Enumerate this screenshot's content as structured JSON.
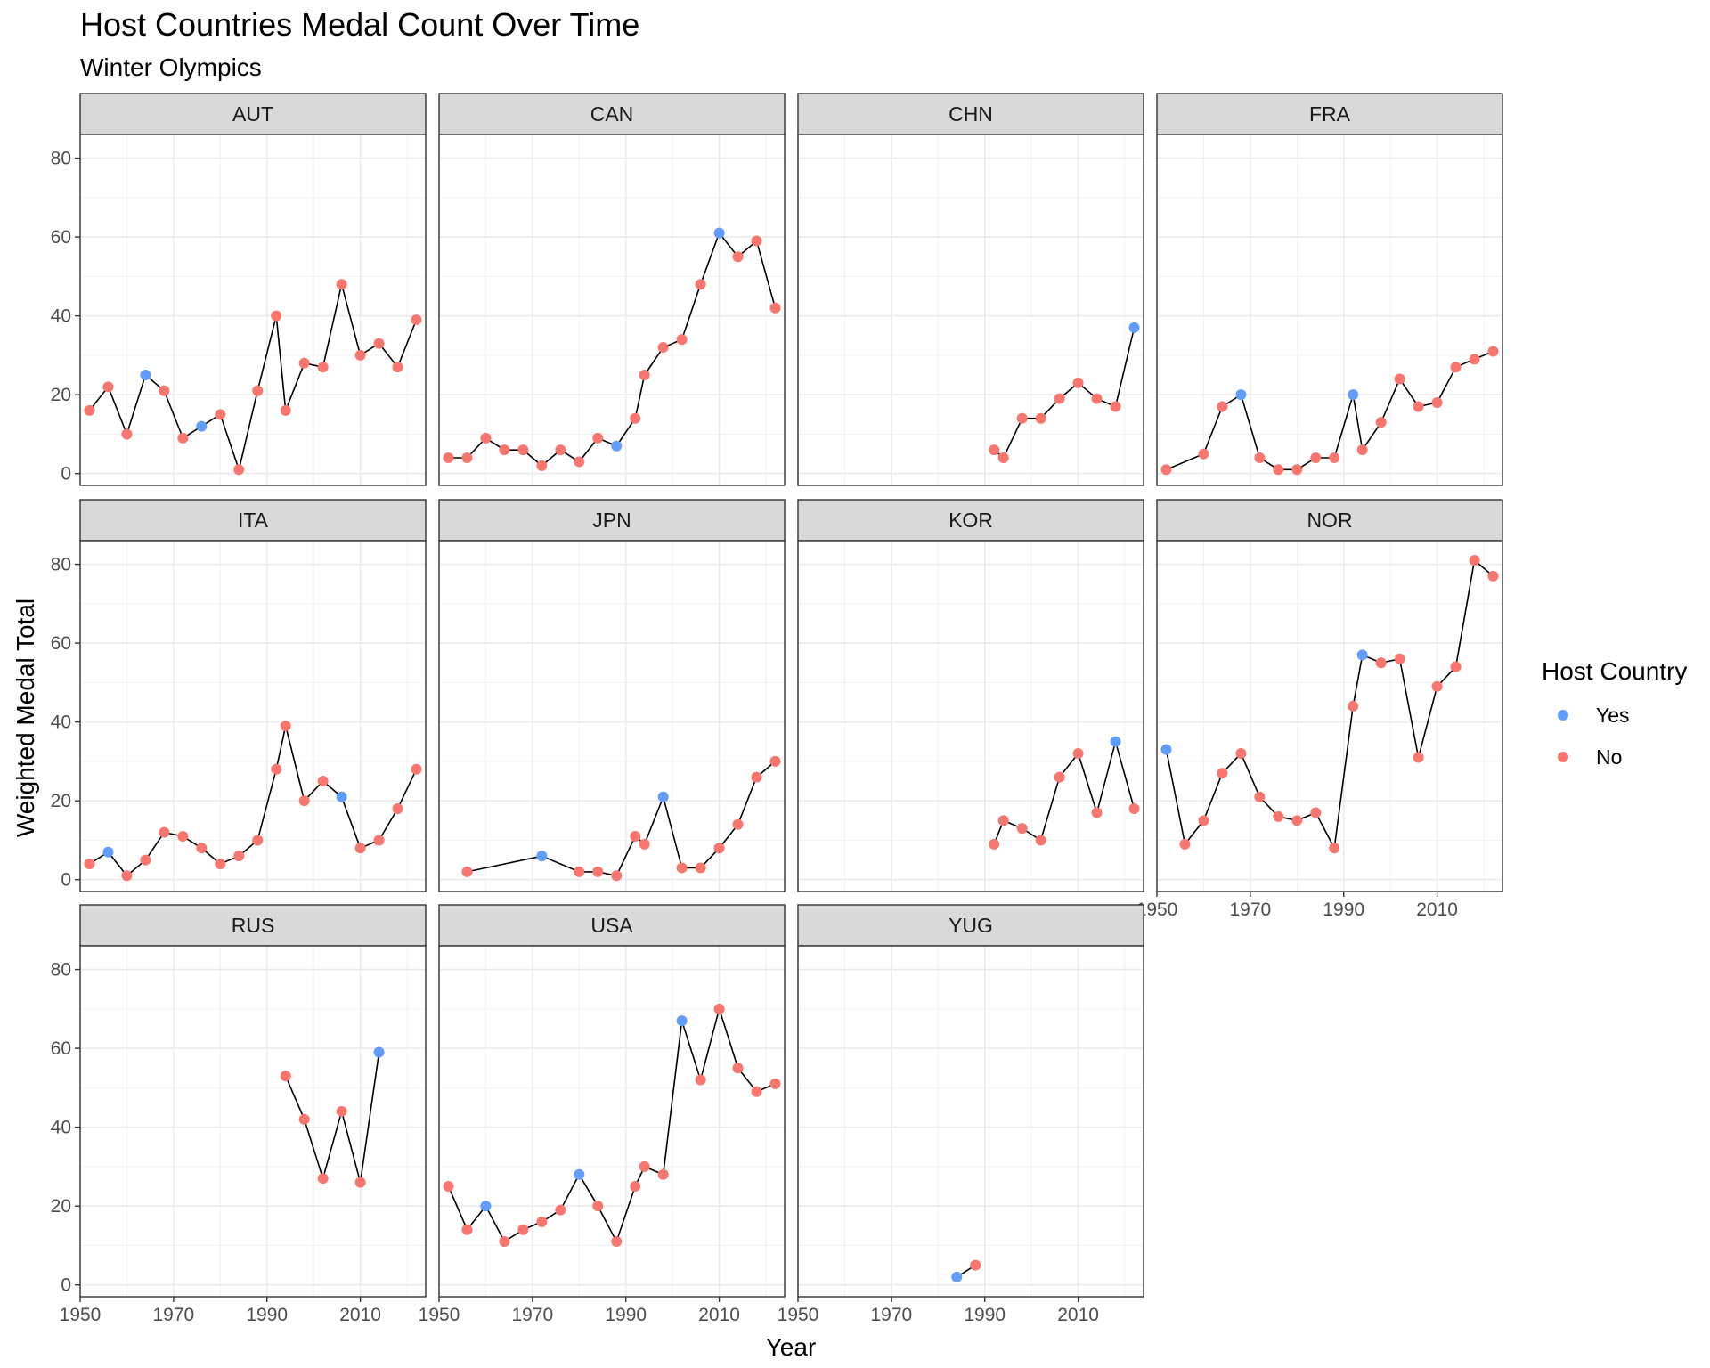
{
  "chart_data": {
    "type": "line",
    "title": "Host Countries Medal Count Over Time",
    "subtitle": "Winter Olympics",
    "xlabel": "Year",
    "ylabel": "Weighted Medal Total",
    "xlim": [
      1950,
      2024
    ],
    "ylim": [
      -3,
      86
    ],
    "x_ticks": [
      1950,
      1970,
      1990,
      2010
    ],
    "y_ticks": [
      0,
      20,
      40,
      60,
      80
    ],
    "grid": true,
    "legend": {
      "title": "Host Country",
      "position": "right",
      "entries": [
        {
          "key": "Yes",
          "label": "Yes",
          "color": "#619CFF"
        },
        {
          "key": "No",
          "label": "No",
          "color": "#F8766D"
        }
      ]
    },
    "line_color": "#000000",
    "panels": [
      {
        "name": "AUT",
        "x": [
          1952,
          1956,
          1960,
          1964,
          1968,
          1972,
          1976,
          1980,
          1984,
          1988,
          1992,
          1994,
          1998,
          2002,
          2006,
          2010,
          2014,
          2018,
          2022
        ],
        "values": [
          16,
          22,
          10,
          25,
          21,
          9,
          12,
          15,
          1,
          21,
          40,
          16,
          28,
          27,
          48,
          30,
          33,
          27,
          39
        ],
        "host": [
          "No",
          "No",
          "No",
          "Yes",
          "No",
          "No",
          "Yes",
          "No",
          "No",
          "No",
          "No",
          "No",
          "No",
          "No",
          "No",
          "No",
          "No",
          "No",
          "No"
        ]
      },
      {
        "name": "CAN",
        "x": [
          1952,
          1956,
          1960,
          1964,
          1968,
          1972,
          1976,
          1980,
          1984,
          1988,
          1992,
          1994,
          1998,
          2002,
          2006,
          2010,
          2014,
          2018,
          2022
        ],
        "values": [
          4,
          4,
          9,
          6,
          6,
          2,
          6,
          3,
          9,
          7,
          14,
          25,
          32,
          34,
          48,
          61,
          55,
          59,
          42
        ],
        "host": [
          "No",
          "No",
          "No",
          "No",
          "No",
          "No",
          "No",
          "No",
          "No",
          "Yes",
          "No",
          "No",
          "No",
          "No",
          "No",
          "Yes",
          "No",
          "No",
          "No"
        ]
      },
      {
        "name": "CHN",
        "x": [
          1992,
          1994,
          1998,
          2002,
          2006,
          2010,
          2014,
          2018,
          2022
        ],
        "values": [
          6,
          4,
          14,
          14,
          19,
          23,
          19,
          17,
          37
        ],
        "host": [
          "No",
          "No",
          "No",
          "No",
          "No",
          "No",
          "No",
          "No",
          "Yes"
        ]
      },
      {
        "name": "FRA",
        "x": [
          1952,
          1960,
          1964,
          1968,
          1972,
          1976,
          1980,
          1984,
          1988,
          1992,
          1994,
          1998,
          2002,
          2006,
          2010,
          2014,
          2018,
          2022
        ],
        "values": [
          1,
          5,
          17,
          20,
          4,
          1,
          1,
          4,
          4,
          20,
          6,
          13,
          24,
          17,
          18,
          27,
          29,
          31
        ],
        "host": [
          "No",
          "No",
          "No",
          "Yes",
          "No",
          "No",
          "No",
          "No",
          "No",
          "Yes",
          "No",
          "No",
          "No",
          "No",
          "No",
          "No",
          "No",
          "No"
        ]
      },
      {
        "name": "ITA",
        "x": [
          1952,
          1956,
          1960,
          1964,
          1968,
          1972,
          1976,
          1980,
          1984,
          1988,
          1992,
          1994,
          1998,
          2002,
          2006,
          2010,
          2014,
          2018,
          2022
        ],
        "values": [
          4,
          7,
          1,
          5,
          12,
          11,
          8,
          4,
          6,
          10,
          28,
          39,
          20,
          25,
          21,
          8,
          10,
          18,
          28
        ],
        "host": [
          "No",
          "Yes",
          "No",
          "No",
          "No",
          "No",
          "No",
          "No",
          "No",
          "No",
          "No",
          "No",
          "No",
          "No",
          "Yes",
          "No",
          "No",
          "No",
          "No"
        ]
      },
      {
        "name": "JPN",
        "x": [
          1956,
          1972,
          1980,
          1984,
          1988,
          1992,
          1994,
          1998,
          2002,
          2006,
          2010,
          2014,
          2018,
          2022
        ],
        "values": [
          2,
          6,
          2,
          2,
          1,
          11,
          9,
          21,
          3,
          3,
          8,
          14,
          26,
          30
        ],
        "host": [
          "No",
          "Yes",
          "No",
          "No",
          "No",
          "No",
          "No",
          "Yes",
          "No",
          "No",
          "No",
          "No",
          "No",
          "No"
        ]
      },
      {
        "name": "KOR",
        "x": [
          1992,
          1994,
          1998,
          2002,
          2006,
          2010,
          2014,
          2018,
          2022
        ],
        "values": [
          9,
          15,
          13,
          10,
          26,
          32,
          17,
          35,
          18
        ],
        "host": [
          "No",
          "No",
          "No",
          "No",
          "No",
          "No",
          "No",
          "Yes",
          "No"
        ]
      },
      {
        "name": "NOR",
        "x": [
          1952,
          1956,
          1960,
          1964,
          1968,
          1972,
          1976,
          1980,
          1984,
          1988,
          1992,
          1994,
          1998,
          2002,
          2006,
          2010,
          2014,
          2018,
          2022
        ],
        "values": [
          33,
          9,
          15,
          27,
          32,
          21,
          16,
          15,
          17,
          8,
          44,
          57,
          55,
          56,
          31,
          49,
          54,
          81,
          77
        ],
        "host": [
          "Yes",
          "No",
          "No",
          "No",
          "No",
          "No",
          "No",
          "No",
          "No",
          "No",
          "No",
          "Yes",
          "No",
          "No",
          "No",
          "No",
          "No",
          "No",
          "No"
        ]
      },
      {
        "name": "RUS",
        "x": [
          1994,
          1998,
          2002,
          2006,
          2010,
          2014
        ],
        "values": [
          53,
          42,
          27,
          44,
          26,
          59
        ],
        "host": [
          "No",
          "No",
          "No",
          "No",
          "No",
          "Yes"
        ]
      },
      {
        "name": "USA",
        "x": [
          1952,
          1956,
          1960,
          1964,
          1968,
          1972,
          1976,
          1980,
          1984,
          1988,
          1992,
          1994,
          1998,
          2002,
          2006,
          2010,
          2014,
          2018,
          2022
        ],
        "values": [
          25,
          14,
          20,
          11,
          14,
          16,
          19,
          28,
          20,
          11,
          25,
          30,
          28,
          67,
          52,
          70,
          55,
          49,
          51
        ],
        "host": [
          "No",
          "No",
          "Yes",
          "No",
          "No",
          "No",
          "No",
          "Yes",
          "No",
          "No",
          "No",
          "No",
          "No",
          "Yes",
          "No",
          "No",
          "No",
          "No",
          "No"
        ]
      },
      {
        "name": "YUG",
        "x": [
          1984,
          1988
        ],
        "values": [
          2,
          5
        ],
        "host": [
          "Yes",
          "No"
        ]
      }
    ]
  }
}
